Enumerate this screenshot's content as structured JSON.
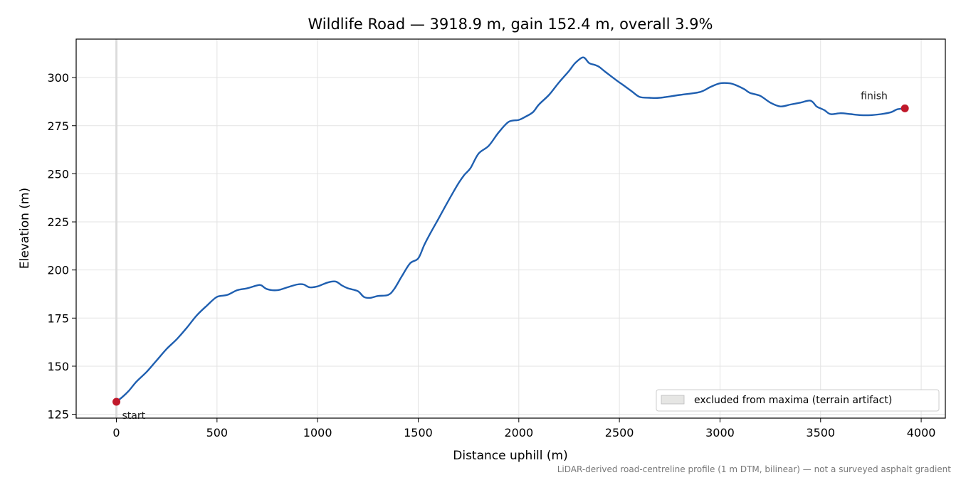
{
  "chart_data": {
    "type": "line",
    "title": "Wildlife Road — 3918.9 m, gain 152.4 m, overall 3.9%",
    "xlabel": "Distance uphill (m)",
    "ylabel": "Elevation (m)",
    "xlim": [
      -200,
      4120
    ],
    "ylim": [
      123,
      320
    ],
    "xticks": [
      0,
      500,
      1000,
      1500,
      2000,
      2500,
      3000,
      3500,
      4000
    ],
    "yticks": [
      125,
      150,
      175,
      200,
      225,
      250,
      275,
      300
    ],
    "grid": true,
    "line_color": "#1f5fb0",
    "marker_color": "#c0182a",
    "excluded_color": "#d9d9d9",
    "excluded_x": [
      0,
      0
    ],
    "x": [
      0,
      30,
      60,
      100,
      150,
      200,
      250,
      300,
      350,
      400,
      450,
      500,
      550,
      600,
      650,
      700,
      720,
      750,
      800,
      850,
      900,
      930,
      960,
      1000,
      1050,
      1090,
      1120,
      1150,
      1200,
      1230,
      1260,
      1300,
      1350,
      1380,
      1420,
      1460,
      1500,
      1530,
      1560,
      1600,
      1650,
      1700,
      1730,
      1760,
      1800,
      1850,
      1900,
      1950,
      2000,
      2030,
      2070,
      2100,
      2150,
      2200,
      2250,
      2280,
      2320,
      2350,
      2380,
      2400,
      2430,
      2480,
      2520,
      2560,
      2600,
      2650,
      2700,
      2800,
      2900,
      2950,
      3000,
      3050,
      3080,
      3120,
      3150,
      3200,
      3250,
      3300,
      3350,
      3400,
      3450,
      3480,
      3500,
      3520,
      3550,
      3600,
      3650,
      3700,
      3750,
      3800,
      3850,
      3880,
      3918.9
    ],
    "y": [
      131.5,
      134,
      137,
      142,
      147,
      153,
      159,
      164,
      170,
      176.5,
      181.5,
      186,
      187,
      189.5,
      190.5,
      192,
      192,
      190,
      189.5,
      191,
      192.5,
      192.5,
      191,
      191.5,
      193.5,
      194,
      192,
      190.5,
      189,
      186,
      185.5,
      186.5,
      187,
      190,
      197,
      203.5,
      206,
      213,
      219,
      226.5,
      236,
      245,
      249.5,
      253,
      260.5,
      264.5,
      271.5,
      277,
      278,
      279.5,
      282,
      286,
      291,
      297.5,
      303.5,
      307.5,
      310.5,
      307.5,
      306.5,
      305.5,
      303,
      299,
      296,
      293,
      290,
      289.5,
      289.5,
      291,
      292.5,
      295,
      297,
      297,
      296,
      294,
      292,
      290.5,
      287,
      285,
      286,
      287,
      288,
      285,
      284,
      283,
      281,
      281.5,
      281,
      280.5,
      280.5,
      281,
      282,
      283.5,
      284
    ],
    "annotations": [
      {
        "text": "start",
        "x": 0,
        "y": 131.5
      },
      {
        "text": "finish",
        "x": 3918.9,
        "y": 284
      }
    ],
    "legend": {
      "label": "excluded from maxima (terrain artifact)",
      "position": "lower-right"
    },
    "footnote": "LiDAR-derived road-centreline profile (1 m DTM, bilinear) — not a surveyed asphalt gradient"
  }
}
